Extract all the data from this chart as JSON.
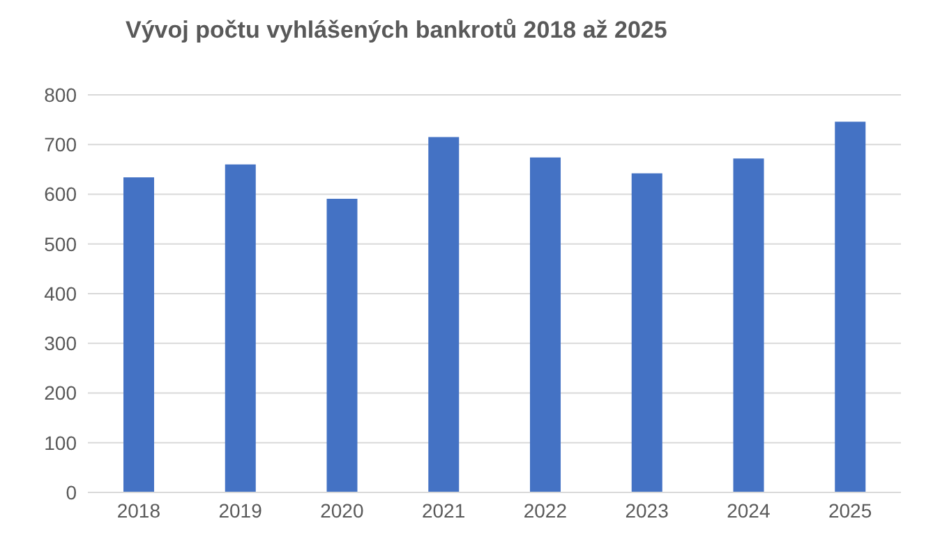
{
  "chart_data": {
    "type": "bar",
    "title": "Vývoj počtu vyhlášených bankrotů 2018 až 2025",
    "categories": [
      "2018",
      "2019",
      "2020",
      "2021",
      "2022",
      "2023",
      "2024",
      "2025"
    ],
    "values": [
      634,
      660,
      591,
      715,
      674,
      642,
      672,
      746
    ],
    "color": "#4472c4",
    "ylim": [
      0,
      800
    ],
    "yticks": [
      0,
      100,
      200,
      300,
      400,
      500,
      600,
      700,
      800
    ],
    "grid": "y"
  }
}
